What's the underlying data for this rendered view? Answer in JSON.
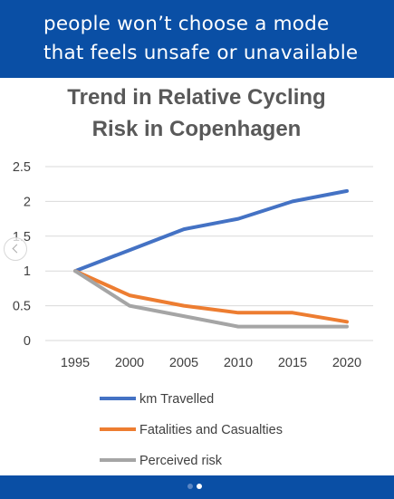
{
  "banner": {
    "line1": "people won’t choose a mode",
    "line2": "that feels unsafe or unavailable",
    "background": "#0a4fa5"
  },
  "carousel": {
    "current_page": 2,
    "page_count": 2
  },
  "chart_data": {
    "type": "line",
    "title_lines": [
      "Trend in Relative Cycling",
      "Risk in Copenhagen"
    ],
    "xlabel": "",
    "ylabel": "",
    "categories": [
      "1995",
      "2000",
      "2005",
      "2010",
      "2015",
      "2020"
    ],
    "ylim": [
      0,
      2.5
    ],
    "yticks": [
      "0",
      "0.5",
      "1",
      "1.5",
      "2",
      "2.5"
    ],
    "grid": true,
    "legend_position": "bottom",
    "series": [
      {
        "name": "km Travelled",
        "color": "#4472c4",
        "values": [
          1.0,
          1.3,
          1.6,
          1.75,
          2.0,
          2.15
        ]
      },
      {
        "name": "Fatalities and Casualties",
        "color": "#ed7d31",
        "values": [
          1.0,
          0.65,
          0.5,
          0.4,
          0.4,
          0.27
        ]
      },
      {
        "name": "Perceived risk",
        "color": "#a5a5a5",
        "values": [
          1.0,
          0.5,
          0.35,
          0.2,
          0.2,
          0.2
        ]
      }
    ]
  }
}
